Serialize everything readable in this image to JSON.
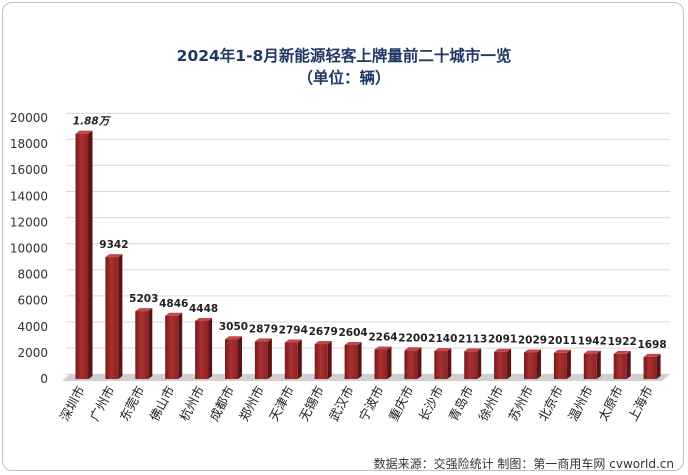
{
  "chart_data": {
    "type": "bar",
    "title": "2024年1-8月新能源轻客上牌量前二十城市一览",
    "subtitle": "（单位：辆）",
    "categories": [
      "深圳市",
      "广州市",
      "东莞市",
      "佛山市",
      "杭州市",
      "成都市",
      "郑州市",
      "天津市",
      "无锡市",
      "武汉市",
      "宁波市",
      "重庆市",
      "长沙市",
      "青岛市",
      "徐州市",
      "苏州市",
      "北京市",
      "温州市",
      "太原市",
      "上海市"
    ],
    "values": [
      18800,
      9342,
      5203,
      4846,
      4448,
      3050,
      2879,
      2794,
      2679,
      2604,
      2264,
      2200,
      2140,
      2113,
      2091,
      2029,
      2011,
      1942,
      1922,
      1698
    ],
    "data_labels": [
      "1.88万",
      "9342",
      "5203",
      "4846",
      "4448",
      "3050",
      "2879",
      "2794",
      "2679",
      "2604",
      "2264",
      "2200",
      "2140",
      "2113",
      "2091",
      "2029",
      "2011",
      "1942",
      "1922",
      "1698"
    ],
    "ylim": [
      0,
      20000
    ],
    "yticks": [
      "0",
      "2000",
      "4000",
      "6000",
      "8000",
      "10000",
      "12000",
      "14000",
      "16000",
      "18000",
      "20000"
    ],
    "grid": true,
    "bar_color": "#9e2a2b",
    "source": "数据来源：交强险统计 制图：第一商用车网 cvworld.cn"
  }
}
